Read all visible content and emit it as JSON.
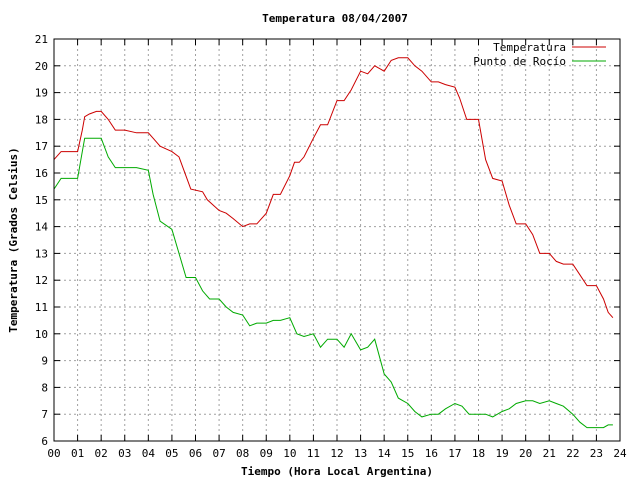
{
  "chart_data": {
    "type": "line",
    "title": "Temperatura 08/04/2007",
    "xlabel": "Tiempo (Hora Local Argentina)",
    "ylabel": "Temperatura (Grados Celsius)",
    "xlim": [
      0,
      24
    ],
    "ylim": [
      6,
      21
    ],
    "x_ticks": [
      "00",
      "01",
      "02",
      "03",
      "04",
      "05",
      "06",
      "07",
      "08",
      "09",
      "10",
      "11",
      "12",
      "13",
      "14",
      "15",
      "16",
      "17",
      "18",
      "19",
      "20",
      "21",
      "22",
      "23",
      "24"
    ],
    "y_ticks": [
      "6",
      "7",
      "8",
      "9",
      "10",
      "11",
      "12",
      "13",
      "14",
      "15",
      "16",
      "17",
      "18",
      "19",
      "20",
      "21"
    ],
    "grid": true,
    "legend_position": "top-right",
    "series": [
      {
        "name": "Temperatura",
        "color": "#cc0000",
        "x": [
          0.0,
          0.3,
          0.5,
          1.0,
          1.2,
          1.3,
          1.5,
          1.8,
          2.0,
          2.3,
          2.6,
          3.0,
          3.5,
          4.0,
          4.2,
          4.5,
          5.0,
          5.3,
          5.8,
          6.3,
          6.5,
          7.0,
          7.3,
          7.6,
          8.0,
          8.3,
          8.6,
          9.0,
          9.3,
          9.6,
          10.0,
          10.2,
          10.4,
          10.6,
          11.0,
          11.3,
          11.6,
          12.0,
          12.3,
          12.6,
          13.0,
          13.3,
          13.6,
          14.0,
          14.3,
          14.6,
          15.0,
          15.3,
          15.6,
          16.0,
          16.3,
          16.6,
          17.0,
          17.2,
          17.5,
          18.0,
          18.3,
          18.6,
          19.0,
          19.3,
          19.6,
          20.0,
          20.3,
          20.6,
          21.0,
          21.3,
          21.6,
          22.0,
          22.3,
          22.6,
          23.0,
          23.3,
          23.5,
          23.7
        ],
        "y": [
          16.5,
          16.8,
          16.8,
          16.8,
          17.6,
          18.1,
          18.2,
          18.3,
          18.3,
          18.0,
          17.6,
          17.6,
          17.5,
          17.5,
          17.3,
          17.0,
          16.8,
          16.6,
          15.4,
          15.3,
          15.0,
          14.6,
          14.5,
          14.3,
          14.0,
          14.1,
          14.1,
          14.5,
          15.2,
          15.2,
          15.9,
          16.4,
          16.4,
          16.6,
          17.3,
          17.8,
          17.8,
          18.7,
          18.7,
          19.1,
          19.8,
          19.7,
          20.0,
          19.8,
          20.2,
          20.3,
          20.3,
          20.0,
          19.8,
          19.4,
          19.4,
          19.3,
          19.2,
          18.8,
          18.0,
          18.0,
          16.5,
          15.8,
          15.7,
          14.8,
          14.1,
          14.1,
          13.7,
          13.0,
          13.0,
          12.7,
          12.6,
          12.6,
          12.2,
          11.8,
          11.8,
          11.3,
          10.8,
          10.6
        ]
      },
      {
        "name": "Punto de Rocío",
        "color": "#00aa00",
        "x": [
          0.0,
          0.3,
          0.5,
          1.0,
          1.2,
          1.3,
          1.5,
          2.0,
          2.3,
          2.6,
          3.0,
          3.5,
          4.0,
          4.2,
          4.5,
          5.0,
          5.3,
          5.6,
          6.0,
          6.3,
          6.6,
          7.0,
          7.3,
          7.6,
          8.0,
          8.3,
          8.6,
          9.0,
          9.3,
          9.6,
          10.0,
          10.3,
          10.6,
          11.0,
          11.3,
          11.6,
          12.0,
          12.3,
          12.6,
          13.0,
          13.3,
          13.6,
          14.0,
          14.3,
          14.6,
          15.0,
          15.3,
          15.6,
          16.0,
          16.3,
          16.6,
          17.0,
          17.3,
          17.6,
          18.0,
          18.3,
          18.6,
          19.0,
          19.3,
          19.6,
          20.0,
          20.3,
          20.6,
          21.0,
          21.3,
          21.6,
          22.0,
          22.3,
          22.6,
          23.0,
          23.3,
          23.5,
          23.7
        ],
        "y": [
          15.4,
          15.8,
          15.8,
          15.8,
          16.8,
          17.3,
          17.3,
          17.3,
          16.6,
          16.2,
          16.2,
          16.2,
          16.1,
          15.2,
          14.2,
          13.9,
          13.0,
          12.1,
          12.1,
          11.6,
          11.3,
          11.3,
          11.0,
          10.8,
          10.7,
          10.3,
          10.4,
          10.4,
          10.5,
          10.5,
          10.6,
          10.0,
          9.9,
          10.0,
          9.5,
          9.8,
          9.8,
          9.5,
          10.0,
          9.4,
          9.5,
          9.8,
          8.5,
          8.2,
          7.6,
          7.4,
          7.1,
          6.9,
          7.0,
          7.0,
          7.2,
          7.4,
          7.3,
          7.0,
          7.0,
          7.0,
          6.9,
          7.1,
          7.2,
          7.4,
          7.5,
          7.5,
          7.4,
          7.5,
          7.4,
          7.3,
          7.0,
          6.7,
          6.5,
          6.5,
          6.5,
          6.6,
          6.6
        ]
      }
    ]
  }
}
